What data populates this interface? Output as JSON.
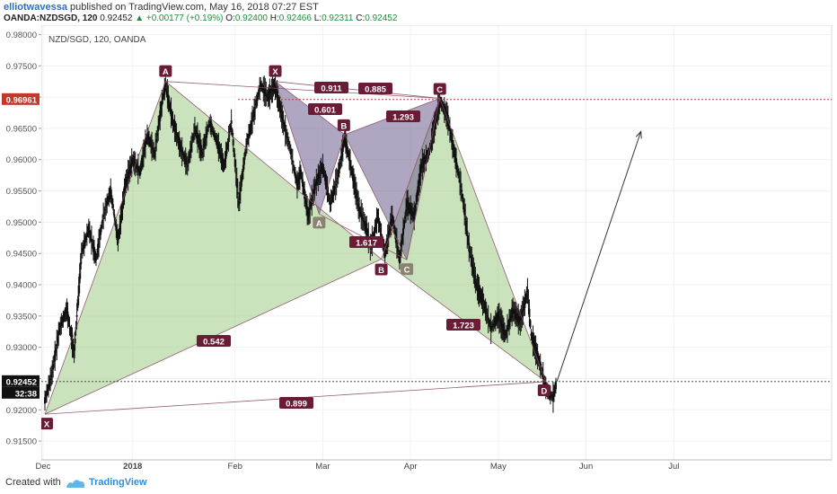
{
  "header": {
    "author": "elliotwavessa",
    "published": "published on TradingView.com, May 16, 2018 07:27 EST",
    "symbol": "OANDA:NZDSGD, 120",
    "last": "0.92452",
    "change_arrow": "▲",
    "change": "+0.00177 (+0.19%)",
    "o_label": "O:",
    "o_value": "0.92400",
    "h_label": "H:",
    "h_value": "0.92466",
    "l_label": "L:",
    "l_value": "0.92311",
    "c_label": "C:",
    "c_value": "0.92452"
  },
  "chart_data": {
    "type": "line",
    "title": "NZD/SGD, 120, OANDA",
    "y_ticks": [
      "0.98000",
      "0.97500",
      "0.97000",
      "0.96500",
      "0.96000",
      "0.95500",
      "0.95000",
      "0.94500",
      "0.94000",
      "0.93500",
      "0.93000",
      "0.92500",
      "0.92000",
      "0.91500"
    ],
    "ylim": [
      0.912,
      0.9815
    ],
    "x_ticks": [
      "Dec",
      "2018",
      "Feb",
      "Mar",
      "Apr",
      "May",
      "Jun",
      "Jul"
    ],
    "price_labels": {
      "resistance": "0.96961",
      "current": "0.92452",
      "countdown": "32:38"
    },
    "price_path": [
      [
        0,
        0.9215
      ],
      [
        2,
        0.926
      ],
      [
        4,
        0.933
      ],
      [
        6,
        0.936
      ],
      [
        8,
        0.929
      ],
      [
        10,
        0.945
      ],
      [
        12,
        0.949
      ],
      [
        14,
        0.944
      ],
      [
        16,
        0.951
      ],
      [
        18,
        0.955
      ],
      [
        20,
        0.947
      ],
      [
        22,
        0.956
      ],
      [
        24,
        0.96
      ],
      [
        26,
        0.958
      ],
      [
        28,
        0.964
      ],
      [
        30,
        0.961
      ],
      [
        32,
        0.969
      ],
      [
        33,
        0.972
      ],
      [
        35,
        0.966
      ],
      [
        37,
        0.962
      ],
      [
        39,
        0.959
      ],
      [
        41,
        0.965
      ],
      [
        43,
        0.961
      ],
      [
        45,
        0.966
      ],
      [
        47,
        0.963
      ],
      [
        49,
        0.959
      ],
      [
        51,
        0.966
      ],
      [
        53,
        0.953
      ],
      [
        55,
        0.962
      ],
      [
        57,
        0.967
      ],
      [
        59,
        0.972
      ],
      [
        61,
        0.97
      ],
      [
        63,
        0.972
      ],
      [
        64,
        0.969
      ],
      [
        66,
        0.964
      ],
      [
        67,
        0.962
      ],
      [
        69,
        0.956
      ],
      [
        70,
        0.958
      ],
      [
        72,
        0.951
      ],
      [
        74,
        0.956
      ],
      [
        76,
        0.959
      ],
      [
        78,
        0.953
      ],
      [
        80,
        0.957
      ],
      [
        82,
        0.9635
      ],
      [
        84,
        0.958
      ],
      [
        86,
        0.952
      ],
      [
        88,
        0.949
      ],
      [
        89,
        0.946
      ],
      [
        90,
        0.948
      ],
      [
        91,
        0.951
      ],
      [
        93,
        0.945
      ],
      [
        95,
        0.951
      ],
      [
        97,
        0.944
      ],
      [
        99,
        0.953
      ],
      [
        101,
        0.951
      ],
      [
        103,
        0.959
      ],
      [
        105,
        0.961
      ],
      [
        107,
        0.9665
      ],
      [
        108,
        0.9695
      ],
      [
        110,
        0.967
      ],
      [
        112,
        0.961
      ],
      [
        114,
        0.955
      ],
      [
        116,
        0.946
      ],
      [
        118,
        0.94
      ],
      [
        120,
        0.937
      ],
      [
        122,
        0.933
      ],
      [
        124,
        0.935
      ],
      [
        126,
        0.932
      ],
      [
        128,
        0.936
      ],
      [
        130,
        0.934
      ],
      [
        132,
        0.939
      ],
      [
        133,
        0.932
      ],
      [
        135,
        0.928
      ],
      [
        136,
        0.926
      ],
      [
        137,
        0.9235
      ],
      [
        138,
        0.9225
      ],
      [
        139,
        0.922
      ],
      [
        140,
        0.9245
      ]
    ],
    "patterns": [
      {
        "name": "large-bat",
        "fill": "#9fcc86",
        "points": {
          "X": [
            0,
            0.9193
          ],
          "A": [
            33,
            0.9725
          ],
          "B": [
            92,
            0.9441
          ],
          "C": [
            108,
            0.9698
          ],
          "D": [
            137,
            0.9245
          ]
        },
        "ratios": [
          "0.542",
          "1.723",
          "0.899",
          "0.885"
        ],
        "point_labels": [
          "X",
          "A",
          "B",
          "C",
          "D"
        ]
      },
      {
        "name": "small-gartley",
        "fill": "#6d5f8e",
        "points": {
          "X": [
            63,
            0.9725
          ],
          "A": [
            75,
            0.9513
          ],
          "B": [
            82,
            0.964
          ],
          "C": [
            99,
            0.944
          ],
          "D": [
            108,
            0.9698
          ]
        },
        "ratios": [
          "0.601",
          "0.911",
          "1.293",
          "1.617"
        ],
        "point_labels": [
          "X",
          "A",
          "B",
          "C",
          "D"
        ]
      }
    ],
    "projection": {
      "from": [
        140,
        0.9245
      ],
      "to": [
        163,
        0.9645
      ]
    },
    "colors": {
      "candle": "#111111",
      "resistance": "#c0392b",
      "label_bg": "#6a1b35",
      "grey_label_bg": "#8c8273",
      "grid": "#f1f1f1"
    }
  },
  "footer": {
    "created_with": "Created with",
    "brand": "TradingView"
  }
}
